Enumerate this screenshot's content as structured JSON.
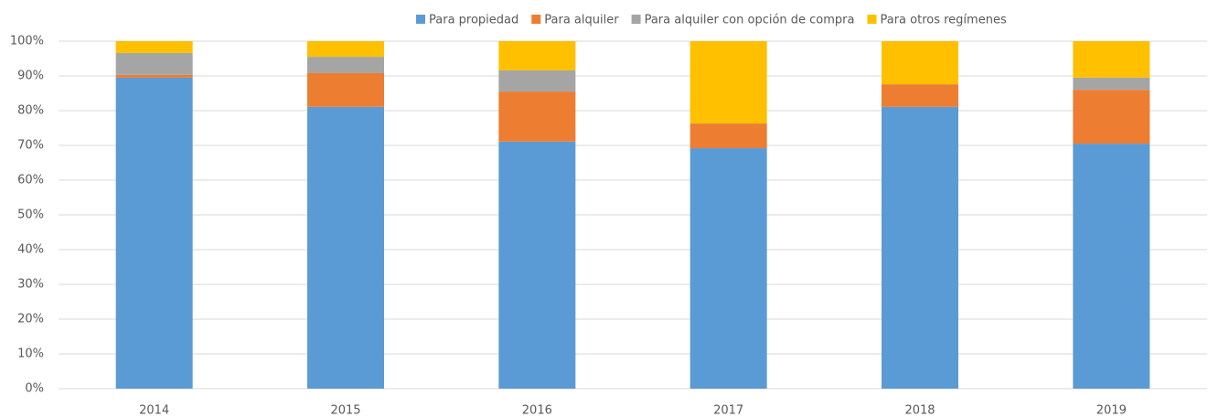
{
  "chart_data": {
    "type": "stacked_bar",
    "categories": [
      "2014",
      "2015",
      "2016",
      "2017",
      "2018",
      "2019"
    ],
    "series": [
      {
        "name": "Para propiedad",
        "color": "#5b9bd5",
        "values": [
          89.5,
          81.1,
          71.1,
          69.2,
          81.1,
          70.5
        ]
      },
      {
        "name": "Para alquiler",
        "color": "#ed7d31",
        "values": [
          0.8,
          9.7,
          14.4,
          7.1,
          6.5,
          15.5
        ]
      },
      {
        "name": "Para alquiler con opción de compra",
        "color": "#a5a5a5",
        "values": [
          6.3,
          4.7,
          6.1,
          0,
          0,
          3.5
        ]
      },
      {
        "name": "Para otros regímenes",
        "color": "#ffc000",
        "values": [
          3.4,
          4.5,
          8.4,
          23.7,
          12.4,
          10.5
        ]
      }
    ],
    "ylim": [
      0,
      100
    ],
    "yticks": [
      {
        "value": 0,
        "label": "0%"
      },
      {
        "value": 10,
        "label": "10%"
      },
      {
        "value": 20,
        "label": "20%"
      },
      {
        "value": 30,
        "label": "30%"
      },
      {
        "value": 40,
        "label": "40%"
      },
      {
        "value": 50,
        "label": "50%"
      },
      {
        "value": 60,
        "label": "60%"
      },
      {
        "value": 70,
        "label": "70%"
      },
      {
        "value": 80,
        "label": "80%"
      },
      {
        "value": 90,
        "label": "90%"
      },
      {
        "value": 100,
        "label": "100%"
      }
    ],
    "grid": true,
    "legend": "top"
  }
}
